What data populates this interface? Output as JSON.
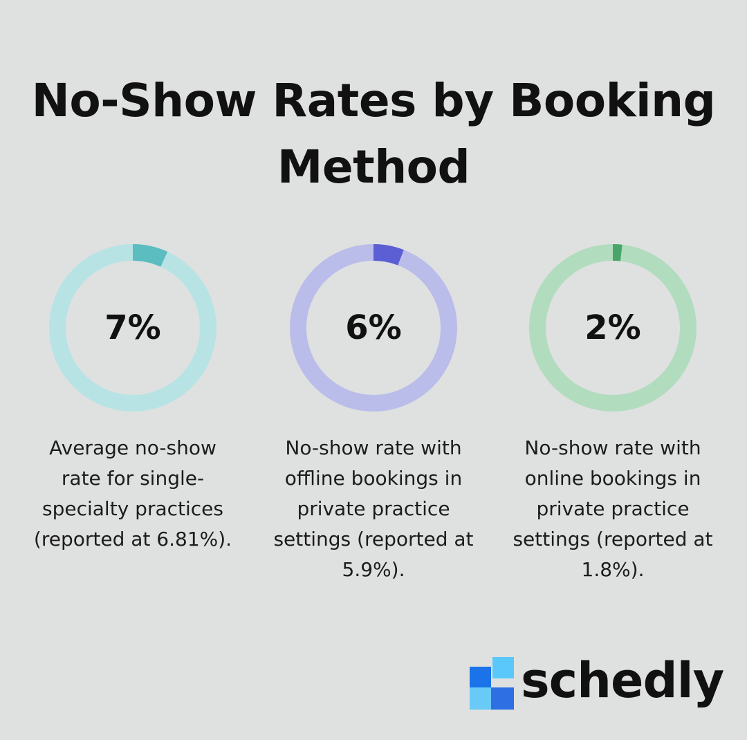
{
  "title": "No-Show Rates by Booking Method",
  "chart_data": {
    "type": "donut",
    "items": [
      {
        "label": "7%",
        "value": 6.81,
        "description": "Average no-show rate for single-specialty practices (reported at 6.81%).",
        "color": "#5bbdbf",
        "track_color": "#b8e3e4"
      },
      {
        "label": "6%",
        "value": 5.9,
        "description": "No-show rate with offline bookings in private practice settings (reported at 5.9%).",
        "color": "#5b5fd3",
        "track_color": "#babdea"
      },
      {
        "label": "2%",
        "value": 1.8,
        "description": "No-show rate with online bookings in private practice settings (reported at 1.8%).",
        "color": "#4aa56a",
        "track_color": "#b2dcbe"
      }
    ]
  },
  "logo": {
    "text": "schedly",
    "colors": [
      "#1a73e8",
      "#5ac8fa",
      "#2f6fe4",
      "#69c9f7"
    ]
  }
}
